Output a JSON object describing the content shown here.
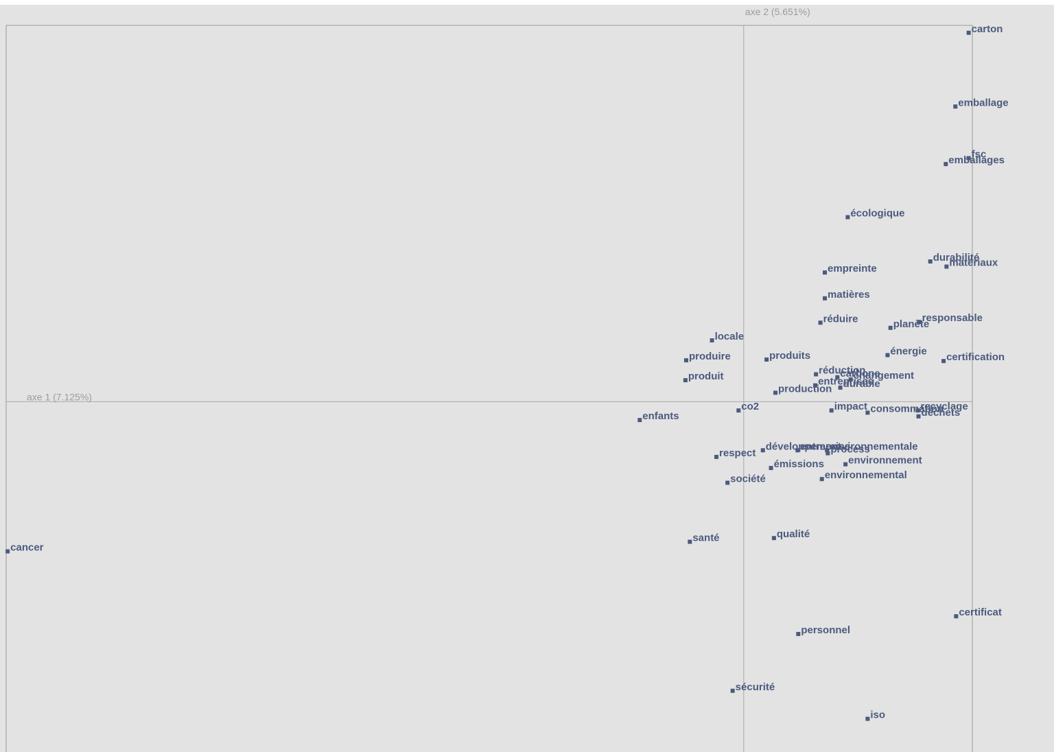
{
  "chart_data": {
    "type": "scatter",
    "title": "",
    "xlabel": "axe 1 (7.125%)",
    "ylabel": "axe 2 (5.651%)",
    "xlim": [
      -1.0,
      0.31
    ],
    "ylim": [
      -0.475,
      0.51
    ],
    "grid": false,
    "colors": {
      "point": "#4b5a7e",
      "axis": "#a8a8a8",
      "axis_label": "#9c9c9c",
      "background": "#e3e3e3"
    },
    "points": [
      {
        "label": "carton",
        "x": 0.305,
        "y": 0.5
      },
      {
        "label": "emballage",
        "x": 0.287,
        "y": 0.4
      },
      {
        "label": "fsc",
        "x": 0.305,
        "y": 0.33
      },
      {
        "label": "emballages",
        "x": 0.274,
        "y": 0.322
      },
      {
        "label": "écologique",
        "x": 0.141,
        "y": 0.25
      },
      {
        "label": "durabilité",
        "x": 0.253,
        "y": 0.19
      },
      {
        "label": "matériaux",
        "x": 0.275,
        "y": 0.183
      },
      {
        "label": "empreinte",
        "x": 0.11,
        "y": 0.175
      },
      {
        "label": "matières",
        "x": 0.11,
        "y": 0.14
      },
      {
        "label": "réduire",
        "x": 0.104,
        "y": 0.107
      },
      {
        "label": "planète",
        "x": 0.199,
        "y": 0.1
      },
      {
        "label": "responsable",
        "x": 0.238,
        "y": 0.108
      },
      {
        "label": "locale",
        "x": -0.043,
        "y": 0.083
      },
      {
        "label": "énergie",
        "x": 0.195,
        "y": 0.063
      },
      {
        "label": "certification",
        "x": 0.271,
        "y": 0.055
      },
      {
        "label": "produire",
        "x": -0.078,
        "y": 0.056
      },
      {
        "label": "produits",
        "x": 0.031,
        "y": 0.057
      },
      {
        "label": "réduction",
        "x": 0.098,
        "y": 0.037
      },
      {
        "label": "carbone",
        "x": 0.127,
        "y": 0.033
      },
      {
        "label": "changement",
        "x": 0.145,
        "y": 0.03
      },
      {
        "label": "produit",
        "x": -0.079,
        "y": 0.029
      },
      {
        "label": "entreprises",
        "x": 0.097,
        "y": 0.022
      },
      {
        "label": "durable",
        "x": 0.131,
        "y": 0.019
      },
      {
        "label": "production",
        "x": 0.043,
        "y": 0.012
      },
      {
        "label": "co2",
        "x": -0.007,
        "y": -0.012
      },
      {
        "label": "impact",
        "x": 0.119,
        "y": -0.012
      },
      {
        "label": "consommation",
        "x": 0.168,
        "y": -0.015
      },
      {
        "label": "recyclage",
        "x": 0.236,
        "y": -0.012
      },
      {
        "label": "déchets",
        "x": 0.237,
        "y": -0.02
      },
      {
        "label": "enfants",
        "x": -0.141,
        "y": -0.025
      },
      {
        "label": "développement",
        "x": 0.026,
        "y": -0.066
      },
      {
        "label": "entreprise",
        "x": 0.073,
        "y": -0.066
      },
      {
        "label": "environnementale",
        "x": 0.113,
        "y": -0.066
      },
      {
        "label": "process",
        "x": 0.114,
        "y": -0.07
      },
      {
        "label": "respect",
        "x": -0.037,
        "y": -0.075
      },
      {
        "label": "environnement",
        "x": 0.138,
        "y": -0.085
      },
      {
        "label": "émissions",
        "x": 0.037,
        "y": -0.09
      },
      {
        "label": "environnemental",
        "x": 0.106,
        "y": -0.105
      },
      {
        "label": "société",
        "x": -0.022,
        "y": -0.11
      },
      {
        "label": "santé",
        "x": -0.073,
        "y": -0.19
      },
      {
        "label": "qualité",
        "x": 0.041,
        "y": -0.185
      },
      {
        "label": "cancer",
        "x": -0.998,
        "y": -0.203
      },
      {
        "label": "certificat",
        "x": 0.288,
        "y": -0.291
      },
      {
        "label": "personnel",
        "x": 0.074,
        "y": -0.315
      },
      {
        "label": "sécurité",
        "x": -0.015,
        "y": -0.392
      },
      {
        "label": "iso",
        "x": 0.168,
        "y": -0.43
      }
    ]
  }
}
